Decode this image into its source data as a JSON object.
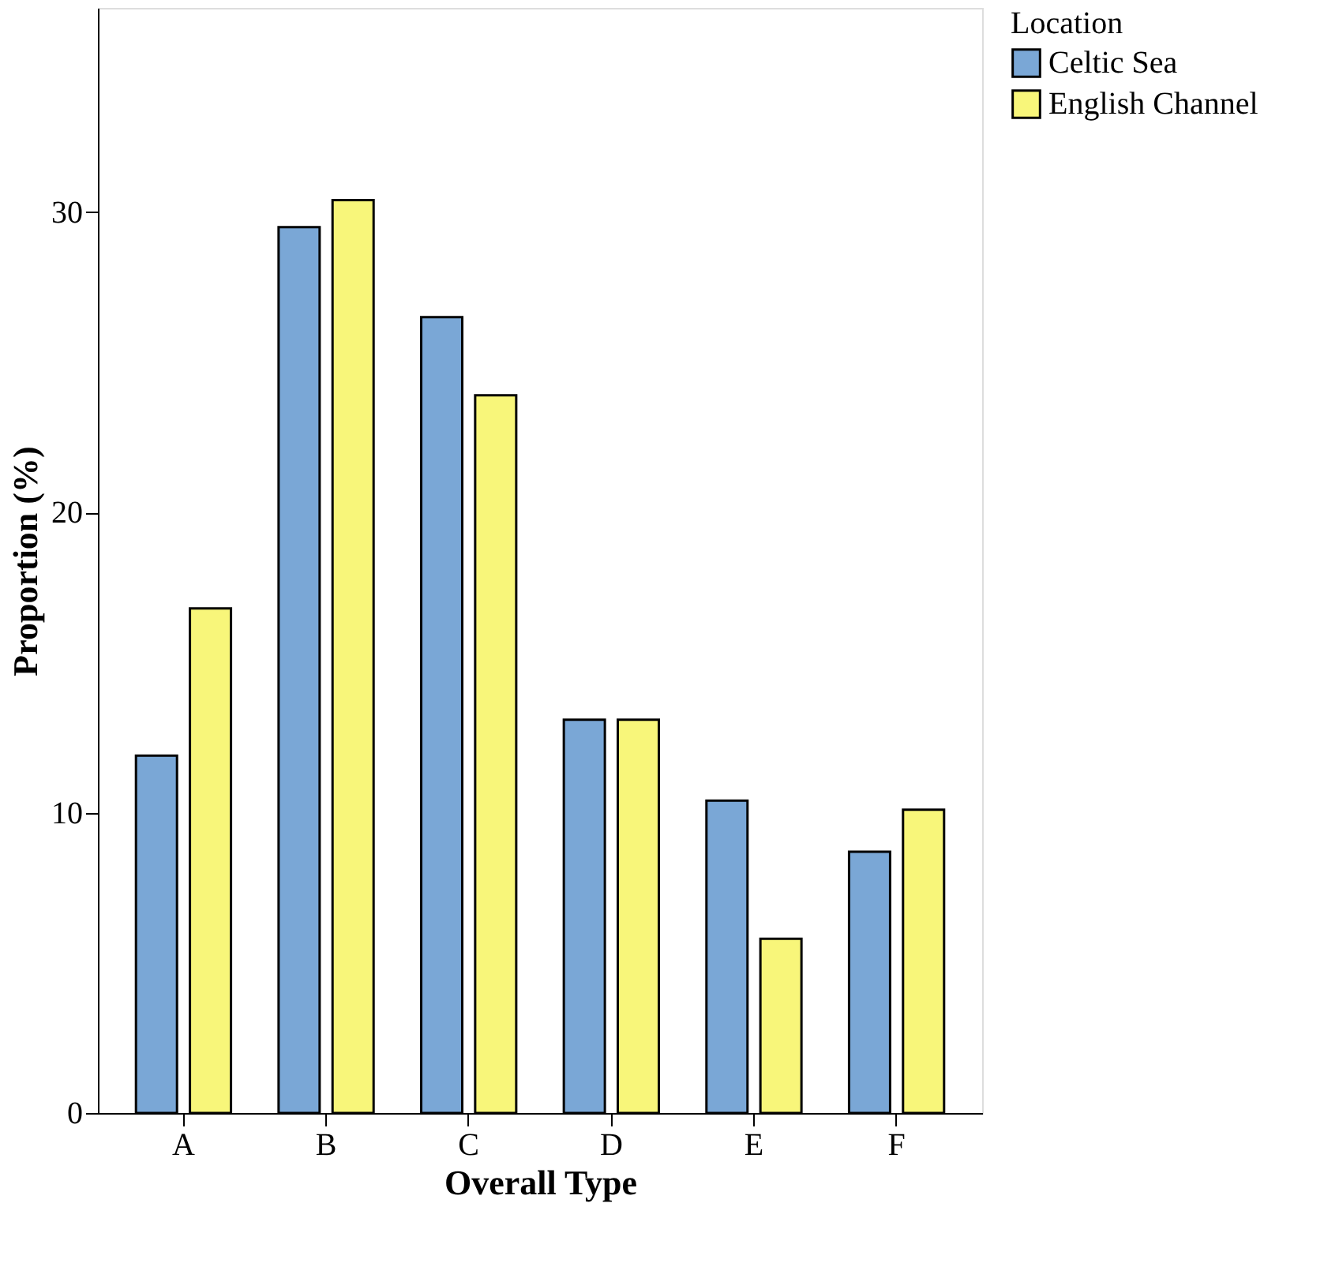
{
  "chart_data": {
    "type": "bar",
    "xlabel": "Overall Type",
    "ylabel": "Proportion (%)",
    "legend_title": "Location",
    "categories": [
      "A",
      "B",
      "C",
      "D",
      "E",
      "F"
    ],
    "series": [
      {
        "name": "Celtic Sea",
        "color": "#7aa7d6",
        "values": [
          11.9,
          29.5,
          26.5,
          13.1,
          10.4,
          8.7
        ]
      },
      {
        "name": "English Channel",
        "color": "#f8f67a",
        "values": [
          16.8,
          30.4,
          23.9,
          13.1,
          5.8,
          10.1
        ]
      }
    ],
    "ylim": [
      0,
      36.8
    ],
    "yticks": [
      0,
      10,
      20,
      30
    ],
    "grid": false,
    "legend": "top right"
  }
}
